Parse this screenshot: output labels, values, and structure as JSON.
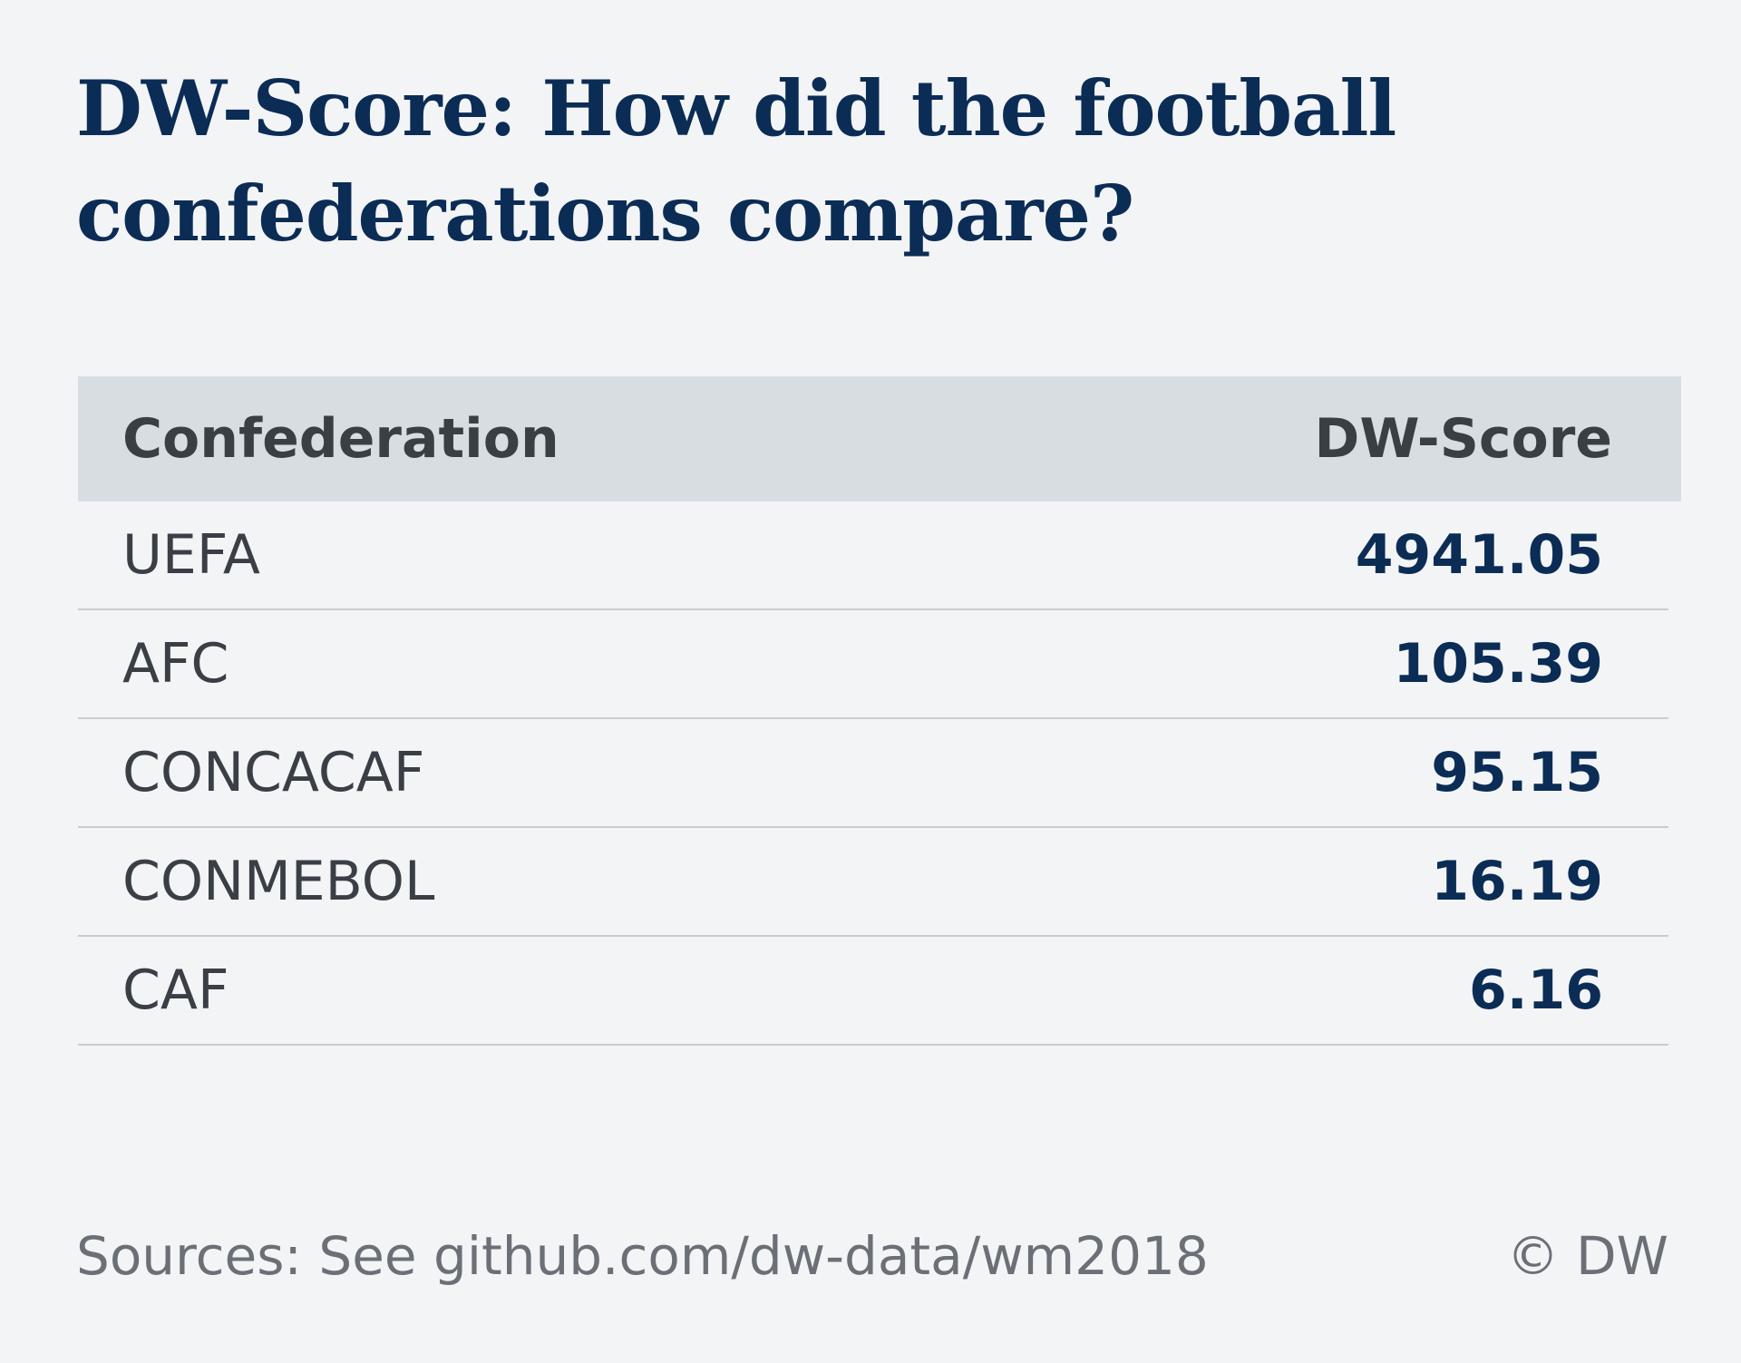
{
  "chart_data": {
    "type": "table",
    "title": "DW-Score: How did the football confederations compare?",
    "columns": [
      "Confederation",
      "DW-Score"
    ],
    "rows": [
      {
        "name": "UEFA",
        "value": "4941.05"
      },
      {
        "name": "AFC",
        "value": "105.39"
      },
      {
        "name": "CONCACAF",
        "value": "95.15"
      },
      {
        "name": "CONMEBOL",
        "value": "16.19"
      },
      {
        "name": "CAF",
        "value": "6.16"
      }
    ]
  },
  "footer": {
    "source": "Sources: See github.com/dw-data/wm2018",
    "copyright": "© DW"
  },
  "colors": {
    "background": "#f3f4f6",
    "title": "#0b2c55",
    "header_bg": "#d8dde1",
    "value": "#0b2c55"
  }
}
